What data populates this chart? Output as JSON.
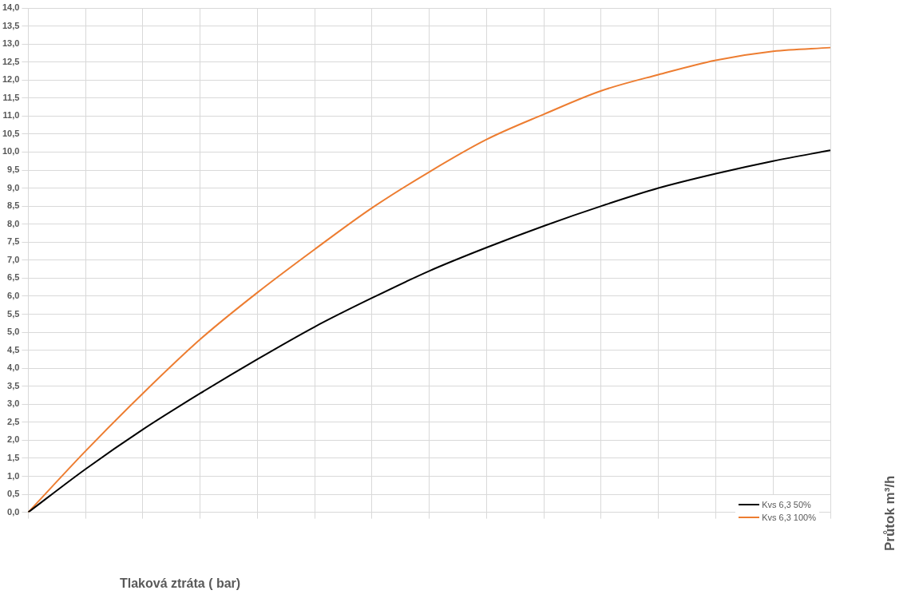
{
  "chart_data": {
    "type": "line",
    "xlabel": "Tlaková ztráta ( bar)",
    "ylabel": "Průtok  m³/h",
    "categories": [
      null,
      null,
      null,
      null,
      null,
      null,
      null,
      null,
      null,
      null,
      null,
      null,
      null,
      null,
      null
    ],
    "series": [
      {
        "name": "Kvs 6,3 50%",
        "color": "#000000",
        "values": [
          0,
          1.2,
          2.3,
          3.3,
          4.25,
          5.15,
          5.95,
          6.7,
          7.35,
          7.95,
          8.5,
          9.0,
          9.4,
          9.75,
          10.05
        ]
      },
      {
        "name": "Kvs 6,3 100%",
        "color": "#ed7d31",
        "values": [
          0,
          1.7,
          3.3,
          4.8,
          6.1,
          7.3,
          8.45,
          9.45,
          10.35,
          11.05,
          11.7,
          12.15,
          12.55,
          12.8,
          12.9
        ]
      }
    ],
    "ylim": [
      0,
      14
    ],
    "yticks": [
      {
        "value": 0,
        "label": "0,0"
      },
      {
        "value": 0.5,
        "label": "0,5"
      },
      {
        "value": 1,
        "label": "1,0"
      },
      {
        "value": 1.5,
        "label": "1,5"
      },
      {
        "value": 2,
        "label": "2,0"
      },
      {
        "value": 2.5,
        "label": "2,5"
      },
      {
        "value": 3,
        "label": "3,0"
      },
      {
        "value": 3.5,
        "label": "3,5"
      },
      {
        "value": 4,
        "label": "4,0"
      },
      {
        "value": 4.5,
        "label": "4,5"
      },
      {
        "value": 5,
        "label": "5,0"
      },
      {
        "value": 5.5,
        "label": "5,5"
      },
      {
        "value": 6,
        "label": "6,0"
      },
      {
        "value": 6.5,
        "label": "6,5"
      },
      {
        "value": 7,
        "label": "7,0"
      },
      {
        "value": 7.5,
        "label": "7,5"
      },
      {
        "value": 8,
        "label": "8,0"
      },
      {
        "value": 8.5,
        "label": "8,5"
      },
      {
        "value": 9,
        "label": "9,0"
      },
      {
        "value": 9.5,
        "label": "9,5"
      },
      {
        "value": 10,
        "label": "10,0"
      },
      {
        "value": 10.5,
        "label": "10,5"
      },
      {
        "value": 11,
        "label": "11,0"
      },
      {
        "value": 11.5,
        "label": "11,5"
      },
      {
        "value": 12,
        "label": "12,0"
      },
      {
        "value": 12.5,
        "label": "12,5"
      },
      {
        "value": 13,
        "label": "13,0"
      },
      {
        "value": 13.5,
        "label": "13,5"
      },
      {
        "value": 14,
        "label": "14,0"
      }
    ],
    "grid": true,
    "legend": "bottom right",
    "marker": "none",
    "line_style": "solid"
  }
}
